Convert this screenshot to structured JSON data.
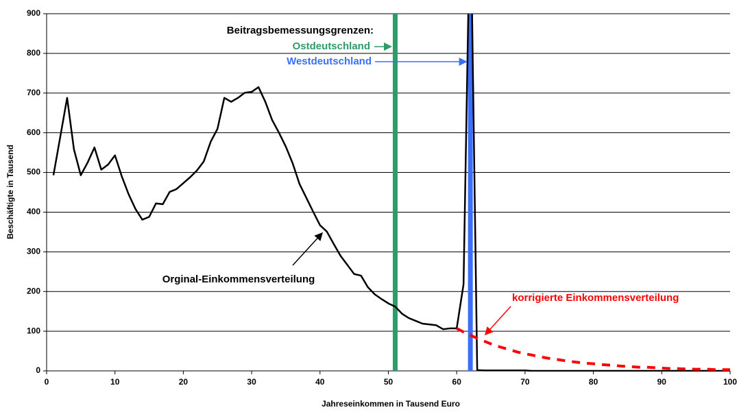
{
  "chart_data": {
    "type": "line",
    "xlabel": "Jahreseinkommen in Tausend Euro",
    "ylabel": "Beschäftigte in Tausend",
    "xlim": [
      0,
      100
    ],
    "xticks": [
      0,
      10,
      20,
      30,
      40,
      50,
      60,
      70,
      80,
      90,
      100
    ],
    "ylim": [
      0,
      900
    ],
    "yticks": [
      0,
      100,
      200,
      300,
      400,
      500,
      600,
      700,
      800,
      900
    ],
    "grid": true,
    "annotation": "Beitragsbemessungsgrenzen:",
    "reference_lines": [
      {
        "name": "Ostdeutschland",
        "x": 51,
        "color": "#2e9c6a"
      },
      {
        "name": "Westdeutschland",
        "x": 62,
        "color": "#3a6ff7"
      }
    ],
    "series": [
      {
        "name": "Orginal-Einkommensverteilung",
        "color": "#000000",
        "dashed": false,
        "x": [
          1,
          2,
          3,
          4,
          5,
          6,
          7,
          8,
          9,
          10,
          11,
          12,
          13,
          14,
          15,
          16,
          17,
          18,
          19,
          20,
          21,
          22,
          23,
          24,
          25,
          26,
          27,
          28,
          29,
          30,
          31,
          32,
          33,
          34,
          35,
          36,
          37,
          38,
          39,
          40,
          41,
          42,
          43,
          44,
          45,
          46,
          47,
          48,
          49,
          50,
          51,
          52,
          53,
          54,
          55,
          56,
          57,
          58,
          59,
          60,
          61,
          62,
          63,
          64,
          65,
          66,
          67,
          68,
          69,
          70,
          71,
          72,
          73,
          74,
          75,
          76,
          77,
          78,
          79,
          80,
          81,
          82,
          83,
          84,
          85,
          86,
          87,
          88,
          89,
          90,
          91,
          92,
          93,
          94,
          95,
          96,
          97,
          98,
          99,
          100
        ],
        "values": [
          493,
          590,
          688,
          558,
          493,
          525,
          563,
          507,
          520,
          543,
          490,
          445,
          408,
          381,
          388,
          422,
          420,
          451,
          458,
          473,
          488,
          505,
          528,
          577,
          610,
          688,
          678,
          688,
          701,
          703,
          715,
          678,
          632,
          600,
          565,
          523,
          471,
          436,
          401,
          367,
          351,
          320,
          290,
          267,
          244,
          240,
          211,
          193,
          181,
          170,
          162,
          144,
          133,
          126,
          119,
          117,
          115,
          105,
          107,
          107,
          218,
          1200,
          2,
          1,
          1,
          1,
          1,
          1,
          1,
          1,
          0,
          0,
          0,
          0,
          0,
          0,
          0,
          0,
          0,
          0,
          0,
          0,
          0,
          0,
          0,
          0,
          0,
          0,
          0,
          0,
          0,
          0,
          0,
          0,
          0,
          0,
          0,
          0,
          0,
          0
        ]
      },
      {
        "name": "korrigierte Einkommensverteilung",
        "color": "#ff0000",
        "dashed": true,
        "x": [
          60,
          61,
          62,
          63,
          64,
          65,
          66,
          67,
          68,
          69,
          70,
          71,
          72,
          73,
          74,
          75,
          76,
          77,
          78,
          79,
          80,
          81,
          82,
          83,
          84,
          85,
          86,
          87,
          88,
          89,
          90,
          91,
          92,
          93,
          94,
          95,
          96,
          97,
          98,
          99,
          100
        ],
        "values": [
          107,
          98,
          90,
          82,
          75,
          68,
          62,
          57,
          52,
          47,
          43,
          40,
          36,
          33,
          30,
          28,
          25,
          23,
          21,
          19,
          18,
          16,
          15,
          14,
          12,
          11,
          10,
          9,
          9,
          8,
          7,
          6,
          6,
          5,
          5,
          4,
          4,
          4,
          3,
          3,
          3
        ]
      }
    ]
  }
}
